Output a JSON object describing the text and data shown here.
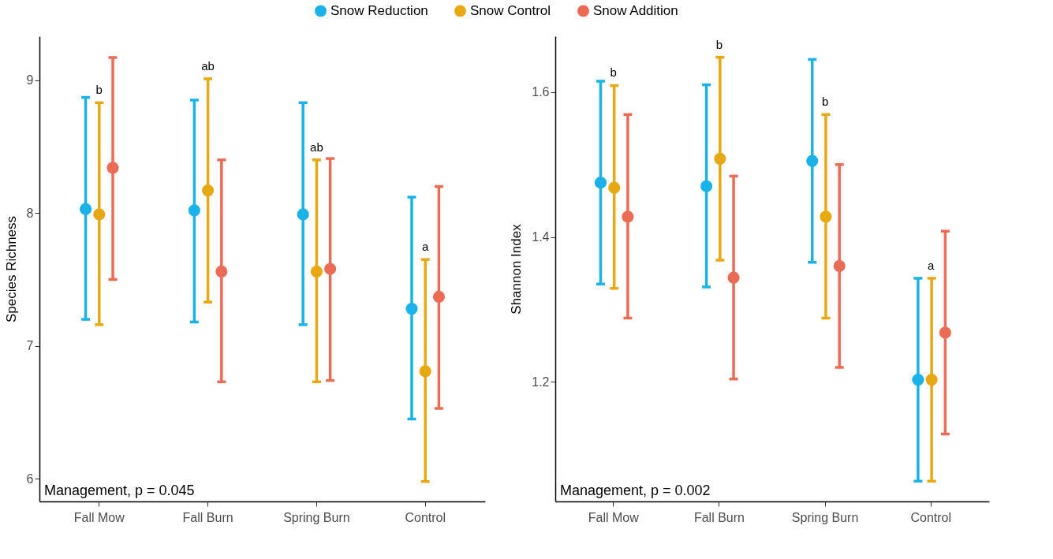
{
  "chart_data": [
    {
      "type": "scatter",
      "ylabel": "Species Richness",
      "categories": [
        "Fall Mow",
        "Fall Burn",
        "Spring Burn",
        "Control"
      ],
      "ylim": [
        5.83,
        9.33
      ],
      "yticks": [
        6,
        7,
        8,
        9
      ],
      "legend": "top",
      "marker": "circle",
      "grid": false,
      "series": [
        {
          "name": "Snow Reduction",
          "color": "#1ab2e8",
          "values": [
            8.03,
            8.02,
            7.99,
            7.28
          ],
          "errors": [
            [
              7.2,
              8.87
            ],
            [
              7.18,
              8.85
            ],
            [
              7.16,
              8.83
            ],
            [
              6.45,
              8.12
            ]
          ]
        },
        {
          "name": "Snow Control",
          "color": "#e7a812",
          "values": [
            7.99,
            8.17,
            7.56,
            6.81
          ],
          "errors": [
            [
              7.16,
              8.83
            ],
            [
              7.33,
              9.01
            ],
            [
              6.73,
              8.4
            ],
            [
              5.98,
              7.65
            ]
          ]
        },
        {
          "name": "Snow Addition",
          "color": "#ec6b55",
          "values": [
            8.34,
            7.56,
            7.58,
            7.37
          ],
          "errors": [
            [
              7.5,
              9.17
            ],
            [
              6.73,
              8.4
            ],
            [
              6.74,
              8.41
            ],
            [
              6.53,
              8.2
            ]
          ]
        }
      ],
      "annotations": [
        "b",
        "ab",
        "ab",
        "a",
        "Management, p = 0.045"
      ]
    },
    {
      "type": "scatter",
      "ylabel": "Shannon Index",
      "categories": [
        "Fall Mow",
        "Fall Burn",
        "Spring Burn",
        "Control"
      ],
      "ylim": [
        1.035,
        1.677
      ],
      "yticks": [
        1.2,
        1.4,
        1.6
      ],
      "legend": "top",
      "marker": "circle",
      "grid": false,
      "series": [
        {
          "name": "Snow Reduction",
          "color": "#1ab2e8",
          "values": [
            1.475,
            1.47,
            1.505,
            1.203
          ],
          "errors": [
            [
              1.335,
              1.615
            ],
            [
              1.331,
              1.61
            ],
            [
              1.365,
              1.645
            ],
            [
              1.063,
              1.343
            ]
          ]
        },
        {
          "name": "Snow Control",
          "color": "#e7a812",
          "values": [
            1.468,
            1.508,
            1.428,
            1.203
          ],
          "errors": [
            [
              1.329,
              1.609
            ],
            [
              1.368,
              1.648
            ],
            [
              1.288,
              1.569
            ],
            [
              1.063,
              1.343
            ]
          ]
        },
        {
          "name": "Snow Addition",
          "color": "#ec6b55",
          "values": [
            1.428,
            1.344,
            1.36,
            1.268
          ],
          "errors": [
            [
              1.288,
              1.569
            ],
            [
              1.204,
              1.484
            ],
            [
              1.22,
              1.5
            ],
            [
              1.128,
              1.408
            ]
          ]
        }
      ],
      "annotations": [
        "b",
        "b",
        "b",
        "a",
        "Management, p = 0.002"
      ]
    }
  ]
}
